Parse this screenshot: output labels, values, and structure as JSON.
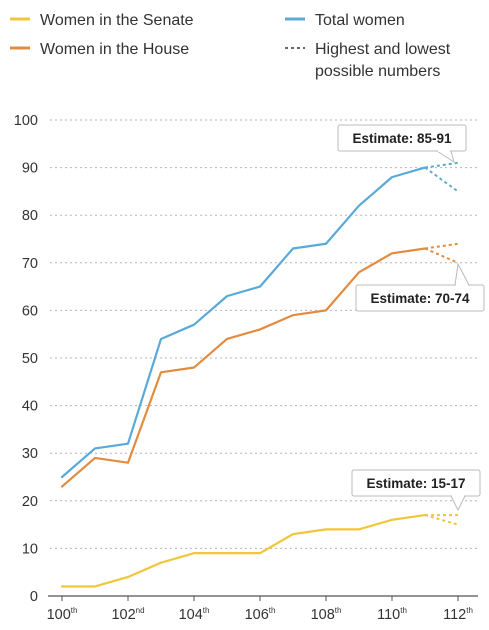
{
  "legend": {
    "senate": "Women in the Senate",
    "house": "Women in the House",
    "total": "Total women",
    "range_line1": "Highest and lowest",
    "range_line2": "possible numbers"
  },
  "colors": {
    "senate": "#f0c63a",
    "house": "#e38b3e",
    "total": "#5aa9d9",
    "range": "#666666"
  },
  "chart_data": {
    "type": "line",
    "title": "",
    "xlabel": "",
    "ylabel": "",
    "ylim": [
      0,
      100
    ],
    "yticks": [
      0,
      10,
      20,
      30,
      40,
      50,
      60,
      70,
      80,
      90,
      100
    ],
    "x": [
      100,
      101,
      102,
      103,
      104,
      105,
      106,
      107,
      108,
      109,
      110,
      111
    ],
    "xticks": [
      {
        "value": 100,
        "base": "100",
        "sup": "th"
      },
      {
        "value": 102,
        "base": "102",
        "sup": "nd"
      },
      {
        "value": 104,
        "base": "104",
        "sup": "th"
      },
      {
        "value": 106,
        "base": "106",
        "sup": "th"
      },
      {
        "value": 108,
        "base": "108",
        "sup": "th"
      },
      {
        "value": 110,
        "base": "110",
        "sup": "th"
      },
      {
        "value": 112,
        "base": "112",
        "sup": "th"
      }
    ],
    "series": [
      {
        "name": "Women in the Senate",
        "key": "senate",
        "values": [
          2,
          2,
          4,
          7,
          9,
          9,
          9,
          13,
          14,
          14,
          16,
          17
        ]
      },
      {
        "name": "Women in the House",
        "key": "house",
        "values": [
          23,
          29,
          28,
          47,
          48,
          54,
          56,
          59,
          60,
          68,
          72,
          73
        ]
      },
      {
        "name": "Total women",
        "key": "total",
        "values": [
          25,
          31,
          32,
          54,
          57,
          63,
          65,
          73,
          74,
          82,
          88,
          90
        ]
      }
    ],
    "estimates": [
      {
        "key": "total",
        "label": "Estimate: 85-91",
        "low": 85,
        "high": 91
      },
      {
        "key": "house",
        "label": "Estimate: 70-74",
        "low": 70,
        "high": 74
      },
      {
        "key": "senate",
        "label": "Estimate: 15-17",
        "low": 15,
        "high": 17
      }
    ],
    "projection_x": 112,
    "grid": true,
    "legend_position": "top"
  }
}
